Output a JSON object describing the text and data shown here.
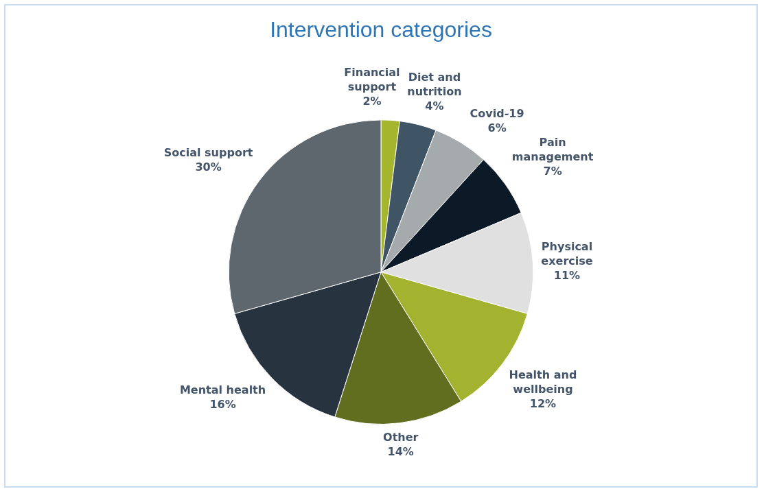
{
  "chart_data": {
    "type": "pie",
    "title": "Intervention categories",
    "categories": [
      "Financial support",
      "Diet and nutrition",
      "Covid-19",
      "Pain management",
      "Physical exercise",
      "Health and wellbeing",
      "Other",
      "Mental health",
      "Social support"
    ],
    "values": [
      2,
      4,
      6,
      7,
      11,
      12,
      14,
      16,
      30
    ],
    "value_labels": [
      "2%",
      "4%",
      "6%",
      "7%",
      "11%",
      "12%",
      "14%",
      "16%",
      "30%"
    ],
    "colors": [
      "#a5b52e",
      "#3f5566",
      "#a5aaad",
      "#0b1a26",
      "#e0e0e0",
      "#a3b330",
      "#616e1f",
      "#27343f",
      "#5f676e"
    ],
    "legend": false
  }
}
